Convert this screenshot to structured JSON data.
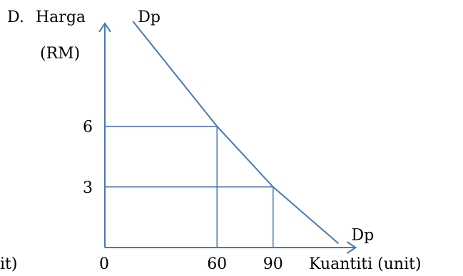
{
  "chart_data": {
    "type": "line",
    "question_label": "D.",
    "ylabel": "Harga",
    "ylabel_unit": "(RM)",
    "xlabel": "Kuantiti (unit)",
    "cropped_left_text": "it)",
    "origin_label": "0",
    "x_ticks": [
      {
        "label": "60",
        "value": 60
      },
      {
        "label": "90",
        "value": 90
      }
    ],
    "y_ticks": [
      {
        "label": "6",
        "value": 6
      },
      {
        "label": "3",
        "value": 3
      }
    ],
    "xlim": [
      0,
      125
    ],
    "ylim": [
      0,
      11.2
    ],
    "series": [
      {
        "name": "Dp",
        "end_label": "Dp",
        "points": [
          [
            15,
            11.2
          ],
          [
            60,
            6
          ],
          [
            90,
            3
          ],
          [
            125,
            0.2
          ]
        ],
        "color": "#4a78b4"
      }
    ],
    "reference_points": [
      {
        "x": 60,
        "y": 6
      },
      {
        "x": 90,
        "y": 3
      }
    ],
    "colors": {
      "axis": "#4a78b4",
      "guide": "#4a78b4",
      "text": "#000000"
    }
  }
}
